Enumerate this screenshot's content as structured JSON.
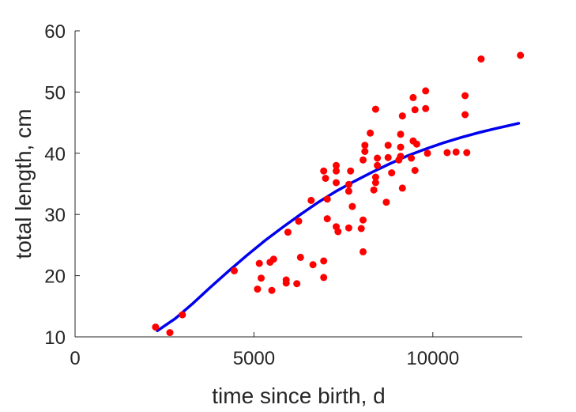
{
  "chart_data": {
    "type": "scatter",
    "xlabel": "time since birth, d",
    "ylabel": "total length, cm",
    "xlim": [
      0,
      12500
    ],
    "ylim": [
      10,
      60
    ],
    "xticks": [
      0,
      5000,
      10000
    ],
    "yticks": [
      10,
      20,
      30,
      40,
      50,
      60
    ],
    "grid": false,
    "colors": {
      "points": "#ff0000",
      "curve": "#0000ee",
      "axis": "#262626"
    },
    "series": [
      {
        "type": "scatter",
        "points": [
          [
            2250,
            11.6
          ],
          [
            2650,
            10.7
          ],
          [
            3000,
            13.6
          ],
          [
            4450,
            20.8
          ],
          [
            5100,
            17.8
          ],
          [
            5150,
            22.0
          ],
          [
            5200,
            19.6
          ],
          [
            5450,
            22.2
          ],
          [
            5500,
            17.6
          ],
          [
            5550,
            22.7
          ],
          [
            5900,
            19.3
          ],
          [
            5900,
            18.8
          ],
          [
            5950,
            27.1
          ],
          [
            6200,
            18.7
          ],
          [
            6300,
            23.0
          ],
          [
            6250,
            28.9
          ],
          [
            6600,
            32.3
          ],
          [
            6650,
            21.8
          ],
          [
            6950,
            19.7
          ],
          [
            6950,
            22.4
          ],
          [
            6950,
            37.1
          ],
          [
            7000,
            35.9
          ],
          [
            7050,
            29.3
          ],
          [
            7050,
            32.5
          ],
          [
            7300,
            38.0
          ],
          [
            7300,
            37.1
          ],
          [
            7300,
            35.2
          ],
          [
            7300,
            28.0
          ],
          [
            7350,
            27.2
          ],
          [
            7650,
            34.9
          ],
          [
            7650,
            33.8
          ],
          [
            7650,
            27.8
          ],
          [
            7700,
            37.1
          ],
          [
            7750,
            31.3
          ],
          [
            8000,
            27.7
          ],
          [
            8050,
            23.9
          ],
          [
            8050,
            29.1
          ],
          [
            8050,
            38.9
          ],
          [
            8100,
            40.3
          ],
          [
            8100,
            41.3
          ],
          [
            8250,
            43.3
          ],
          [
            8350,
            34.0
          ],
          [
            8400,
            36.1
          ],
          [
            8400,
            35.2
          ],
          [
            8400,
            47.2
          ],
          [
            8450,
            39.2
          ],
          [
            8450,
            38.0
          ],
          [
            8700,
            32.0
          ],
          [
            8750,
            41.3
          ],
          [
            8750,
            39.3
          ],
          [
            8850,
            36.8
          ],
          [
            9050,
            38.9
          ],
          [
            9100,
            41.0
          ],
          [
            9100,
            43.1
          ],
          [
            9100,
            39.5
          ],
          [
            9150,
            34.3
          ],
          [
            9150,
            46.1
          ],
          [
            9400,
            39.2
          ],
          [
            9450,
            49.1
          ],
          [
            9450,
            42.0
          ],
          [
            9500,
            37.2
          ],
          [
            9500,
            47.1
          ],
          [
            9550,
            41.5
          ],
          [
            9800,
            50.2
          ],
          [
            9800,
            47.3
          ],
          [
            9850,
            40.0
          ],
          [
            10400,
            40.1
          ],
          [
            10650,
            40.2
          ],
          [
            10900,
            49.4
          ],
          [
            10900,
            46.3
          ],
          [
            10950,
            40.1
          ],
          [
            11350,
            55.4
          ],
          [
            12450,
            56.0
          ]
        ]
      },
      {
        "type": "line",
        "x": [
          2300,
          2800,
          3300,
          3800,
          4300,
          4800,
          5300,
          5800,
          6300,
          6800,
          7300,
          7800,
          8300,
          8800,
          9300,
          9800,
          10300,
          10800,
          11300,
          11800,
          12400
        ],
        "values": [
          11.0,
          13.0,
          15.5,
          18.2,
          20.8,
          23.3,
          25.7,
          27.9,
          30.0,
          32.0,
          33.8,
          35.4,
          36.9,
          38.3,
          39.6,
          40.7,
          41.7,
          42.6,
          43.4,
          44.1,
          44.9
        ]
      }
    ]
  }
}
